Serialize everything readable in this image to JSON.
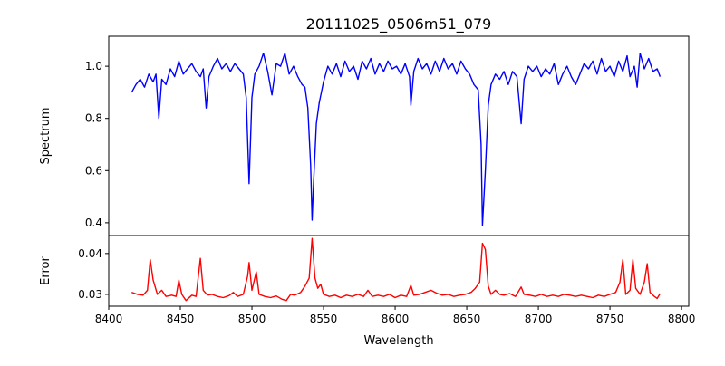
{
  "chart_data": [
    {
      "type": "line",
      "title": "20111025_0506m51_079",
      "xlabel": "",
      "ylabel": "Spectrum",
      "xlim": [
        8400,
        8805
      ],
      "ylim": [
        0.351,
        1.115
      ],
      "yticks": [
        0.4,
        0.6,
        0.8,
        1.0
      ],
      "ytick_labels": [
        "0.4",
        "0.6",
        "0.8",
        "1.0"
      ],
      "grid": false,
      "series": [
        {
          "name": "Spectrum",
          "color": "#0000ff",
          "points": [
            [
              8416,
              0.9
            ],
            [
              8419,
              0.93
            ],
            [
              8422,
              0.95
            ],
            [
              8425,
              0.92
            ],
            [
              8428,
              0.97
            ],
            [
              8431,
              0.94
            ],
            [
              8433,
              0.97
            ],
            [
              8435,
              0.8
            ],
            [
              8437,
              0.95
            ],
            [
              8440,
              0.93
            ],
            [
              8443,
              0.99
            ],
            [
              8446,
              0.96
            ],
            [
              8449,
              1.02
            ],
            [
              8452,
              0.97
            ],
            [
              8455,
              0.99
            ],
            [
              8458,
              1.01
            ],
            [
              8461,
              0.98
            ],
            [
              8464,
              0.96
            ],
            [
              8466,
              0.99
            ],
            [
              8468,
              0.84
            ],
            [
              8470,
              0.96
            ],
            [
              8473,
              1.0
            ],
            [
              8476,
              1.03
            ],
            [
              8479,
              0.99
            ],
            [
              8482,
              1.01
            ],
            [
              8485,
              0.98
            ],
            [
              8488,
              1.01
            ],
            [
              8491,
              0.99
            ],
            [
              8494,
              0.97
            ],
            [
              8496,
              0.88
            ],
            [
              8498,
              0.55
            ],
            [
              8500,
              0.88
            ],
            [
              8502,
              0.97
            ],
            [
              8505,
              1.0
            ],
            [
              8508,
              1.05
            ],
            [
              8511,
              0.98
            ],
            [
              8514,
              0.89
            ],
            [
              8517,
              1.01
            ],
            [
              8520,
              1.0
            ],
            [
              8523,
              1.05
            ],
            [
              8526,
              0.97
            ],
            [
              8529,
              1.0
            ],
            [
              8532,
              0.96
            ],
            [
              8535,
              0.93
            ],
            [
              8537,
              0.92
            ],
            [
              8539,
              0.84
            ],
            [
              8541,
              0.62
            ],
            [
              8542,
              0.41
            ],
            [
              8543,
              0.55
            ],
            [
              8545,
              0.78
            ],
            [
              8547,
              0.86
            ],
            [
              8550,
              0.94
            ],
            [
              8553,
              1.0
            ],
            [
              8556,
              0.97
            ],
            [
              8559,
              1.01
            ],
            [
              8562,
              0.96
            ],
            [
              8565,
              1.02
            ],
            [
              8568,
              0.98
            ],
            [
              8571,
              1.0
            ],
            [
              8574,
              0.95
            ],
            [
              8577,
              1.02
            ],
            [
              8580,
              0.99
            ],
            [
              8583,
              1.03
            ],
            [
              8586,
              0.97
            ],
            [
              8589,
              1.01
            ],
            [
              8592,
              0.98
            ],
            [
              8595,
              1.02
            ],
            [
              8598,
              0.99
            ],
            [
              8601,
              1.0
            ],
            [
              8604,
              0.97
            ],
            [
              8607,
              1.01
            ],
            [
              8610,
              0.96
            ],
            [
              8611,
              0.85
            ],
            [
              8613,
              0.98
            ],
            [
              8616,
              1.03
            ],
            [
              8619,
              0.99
            ],
            [
              8622,
              1.01
            ],
            [
              8625,
              0.97
            ],
            [
              8628,
              1.02
            ],
            [
              8631,
              0.98
            ],
            [
              8634,
              1.03
            ],
            [
              8637,
              0.99
            ],
            [
              8640,
              1.01
            ],
            [
              8643,
              0.97
            ],
            [
              8646,
              1.02
            ],
            [
              8649,
              0.99
            ],
            [
              8652,
              0.97
            ],
            [
              8655,
              0.93
            ],
            [
              8658,
              0.91
            ],
            [
              8660,
              0.7
            ],
            [
              8661,
              0.39
            ],
            [
              8663,
              0.6
            ],
            [
              8665,
              0.85
            ],
            [
              8667,
              0.93
            ],
            [
              8670,
              0.97
            ],
            [
              8673,
              0.95
            ],
            [
              8676,
              0.98
            ],
            [
              8679,
              0.93
            ],
            [
              8682,
              0.98
            ],
            [
              8685,
              0.96
            ],
            [
              8688,
              0.78
            ],
            [
              8690,
              0.95
            ],
            [
              8693,
              1.0
            ],
            [
              8696,
              0.98
            ],
            [
              8699,
              1.0
            ],
            [
              8702,
              0.96
            ],
            [
              8705,
              0.99
            ],
            [
              8708,
              0.97
            ],
            [
              8711,
              1.01
            ],
            [
              8714,
              0.93
            ],
            [
              8717,
              0.97
            ],
            [
              8720,
              1.0
            ],
            [
              8723,
              0.96
            ],
            [
              8726,
              0.93
            ],
            [
              8729,
              0.97
            ],
            [
              8732,
              1.01
            ],
            [
              8735,
              0.99
            ],
            [
              8738,
              1.02
            ],
            [
              8741,
              0.97
            ],
            [
              8744,
              1.03
            ],
            [
              8747,
              0.98
            ],
            [
              8750,
              1.0
            ],
            [
              8753,
              0.96
            ],
            [
              8756,
              1.02
            ],
            [
              8759,
              0.98
            ],
            [
              8762,
              1.04
            ],
            [
              8764,
              0.96
            ],
            [
              8767,
              1.0
            ],
            [
              8769,
              0.92
            ],
            [
              8771,
              1.05
            ],
            [
              8774,
              0.99
            ],
            [
              8777,
              1.03
            ],
            [
              8780,
              0.98
            ],
            [
              8783,
              0.99
            ],
            [
              8785,
              0.96
            ]
          ]
        }
      ]
    },
    {
      "type": "line",
      "title": "",
      "xlabel": "Wavelength",
      "ylabel": "Error",
      "xlim": [
        8400,
        8805
      ],
      "ylim": [
        0.0271,
        0.0444
      ],
      "xticks": [
        8400,
        8450,
        8500,
        8550,
        8600,
        8650,
        8700,
        8750,
        8800
      ],
      "xtick_labels": [
        "8400",
        "8450",
        "8500",
        "8550",
        "8600",
        "8650",
        "8700",
        "8750",
        "8800"
      ],
      "yticks": [
        0.03,
        0.04
      ],
      "ytick_labels": [
        "0.03",
        "0.04"
      ],
      "grid": false,
      "series": [
        {
          "name": "Error",
          "color": "#ff0000",
          "points": [
            [
              8416,
              0.0305
            ],
            [
              8420,
              0.03
            ],
            [
              8424,
              0.0298
            ],
            [
              8427,
              0.031
            ],
            [
              8429,
              0.0385
            ],
            [
              8431,
              0.0335
            ],
            [
              8434,
              0.03
            ],
            [
              8437,
              0.031
            ],
            [
              8440,
              0.0295
            ],
            [
              8444,
              0.0298
            ],
            [
              8447,
              0.0295
            ],
            [
              8449,
              0.0335
            ],
            [
              8451,
              0.03
            ],
            [
              8454,
              0.0285
            ],
            [
              8458,
              0.0298
            ],
            [
              8461,
              0.0295
            ],
            [
              8464,
              0.0388
            ],
            [
              8466,
              0.031
            ],
            [
              8469,
              0.0298
            ],
            [
              8472,
              0.03
            ],
            [
              8476,
              0.0295
            ],
            [
              8480,
              0.0292
            ],
            [
              8484,
              0.0297
            ],
            [
              8487,
              0.0305
            ],
            [
              8490,
              0.0295
            ],
            [
              8494,
              0.03
            ],
            [
              8497,
              0.0345
            ],
            [
              8498,
              0.0378
            ],
            [
              8500,
              0.031
            ],
            [
              8503,
              0.0355
            ],
            [
              8505,
              0.03
            ],
            [
              8509,
              0.0295
            ],
            [
              8513,
              0.0292
            ],
            [
              8517,
              0.0296
            ],
            [
              8521,
              0.0288
            ],
            [
              8524,
              0.0285
            ],
            [
              8527,
              0.03
            ],
            [
              8530,
              0.0298
            ],
            [
              8534,
              0.0305
            ],
            [
              8537,
              0.032
            ],
            [
              8540,
              0.034
            ],
            [
              8542,
              0.0437
            ],
            [
              8544,
              0.034
            ],
            [
              8546,
              0.0315
            ],
            [
              8548,
              0.0325
            ],
            [
              8550,
              0.03
            ],
            [
              8554,
              0.0295
            ],
            [
              8558,
              0.0298
            ],
            [
              8562,
              0.0292
            ],
            [
              8566,
              0.0298
            ],
            [
              8570,
              0.0295
            ],
            [
              8574,
              0.03
            ],
            [
              8578,
              0.0295
            ],
            [
              8581,
              0.031
            ],
            [
              8584,
              0.0295
            ],
            [
              8588,
              0.0298
            ],
            [
              8592,
              0.0295
            ],
            [
              8596,
              0.03
            ],
            [
              8600,
              0.0292
            ],
            [
              8604,
              0.0298
            ],
            [
              8608,
              0.0295
            ],
            [
              8611,
              0.0322
            ],
            [
              8613,
              0.0298
            ],
            [
              8617,
              0.03
            ],
            [
              8621,
              0.0305
            ],
            [
              8625,
              0.031
            ],
            [
              8629,
              0.0303
            ],
            [
              8633,
              0.0298
            ],
            [
              8637,
              0.03
            ],
            [
              8641,
              0.0295
            ],
            [
              8645,
              0.0298
            ],
            [
              8649,
              0.03
            ],
            [
              8653,
              0.0305
            ],
            [
              8656,
              0.0315
            ],
            [
              8659,
              0.033
            ],
            [
              8661,
              0.0425
            ],
            [
              8663,
              0.041
            ],
            [
              8665,
              0.032
            ],
            [
              8667,
              0.03
            ],
            [
              8670,
              0.031
            ],
            [
              8673,
              0.03
            ],
            [
              8676,
              0.0298
            ],
            [
              8680,
              0.0302
            ],
            [
              8684,
              0.0295
            ],
            [
              8688,
              0.0318
            ],
            [
              8690,
              0.03
            ],
            [
              8694,
              0.0298
            ],
            [
              8698,
              0.0295
            ],
            [
              8702,
              0.03
            ],
            [
              8706,
              0.0295
            ],
            [
              8710,
              0.0298
            ],
            [
              8714,
              0.0295
            ],
            [
              8718,
              0.03
            ],
            [
              8722,
              0.0298
            ],
            [
              8726,
              0.0295
            ],
            [
              8730,
              0.0298
            ],
            [
              8734,
              0.0295
            ],
            [
              8738,
              0.0292
            ],
            [
              8742,
              0.0298
            ],
            [
              8746,
              0.0295
            ],
            [
              8750,
              0.03
            ],
            [
              8754,
              0.0305
            ],
            [
              8757,
              0.033
            ],
            [
              8759,
              0.0385
            ],
            [
              8761,
              0.03
            ],
            [
              8764,
              0.031
            ],
            [
              8766,
              0.0385
            ],
            [
              8768,
              0.0315
            ],
            [
              8771,
              0.03
            ],
            [
              8774,
              0.033
            ],
            [
              8776,
              0.0375
            ],
            [
              8778,
              0.0305
            ],
            [
              8781,
              0.0295
            ],
            [
              8783,
              0.029
            ],
            [
              8785,
              0.0302
            ]
          ]
        }
      ]
    }
  ]
}
